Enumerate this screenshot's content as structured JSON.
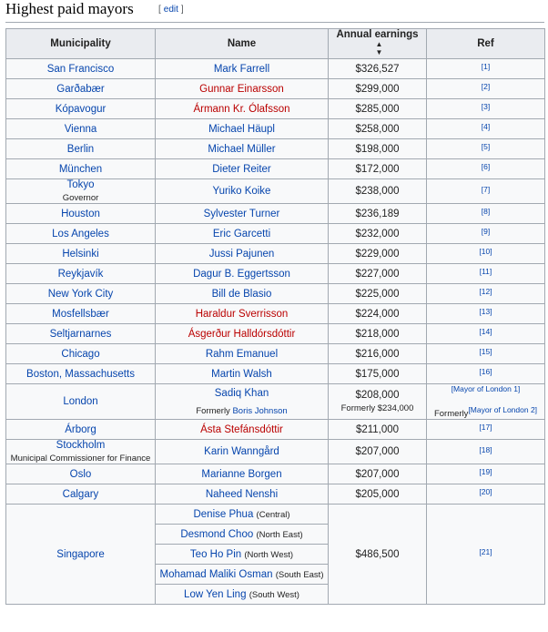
{
  "heading": {
    "title": "Highest paid mayors",
    "edit_open": "[",
    "edit_label": "edit",
    "edit_close": "]"
  },
  "table": {
    "headers": {
      "municipality": "Municipality",
      "name": "Name",
      "earnings": "Annual earnings",
      "ref": "Ref"
    },
    "sort_icon": "sort-icon",
    "rows": [
      {
        "municipality": "San Francisco",
        "name": "Mark Farrell",
        "earnings": "$326,527",
        "ref": "[1]"
      },
      {
        "municipality": "Garðabær",
        "name": "Gunnar Einarsson",
        "earnings": "$299,000",
        "ref": "[2]"
      },
      {
        "municipality": "Kópavogur",
        "name": "Ármann Kr. Ólafsson",
        "earnings": "$285,000",
        "ref": "[3]"
      },
      {
        "municipality": "Vienna",
        "name": "Michael Häupl",
        "earnings": "$258,000",
        "ref": "[4]"
      },
      {
        "municipality": "Berlin",
        "name": "Michael Müller",
        "earnings": "$198,000",
        "ref": "[5]"
      },
      {
        "municipality": "München",
        "name": "Dieter Reiter",
        "earnings": "$172,000",
        "ref": "[6]"
      },
      {
        "municipality": "Tokyo",
        "municipality_note": "Governor",
        "name": "Yuriko Koike",
        "earnings": "$238,000",
        "ref": "[7]"
      },
      {
        "municipality": "Houston",
        "name": "Sylvester Turner",
        "earnings": "$236,189",
        "ref": "[8]"
      },
      {
        "municipality": "Los Angeles",
        "name": "Eric Garcetti",
        "earnings": "$232,000",
        "ref": "[9]"
      },
      {
        "municipality": "Helsinki",
        "name": "Jussi Pajunen",
        "earnings": "$229,000",
        "ref": "[10]"
      },
      {
        "municipality": "Reykjavík",
        "name": "Dagur B. Eggertsson",
        "earnings": "$227,000",
        "ref": "[11]"
      },
      {
        "municipality": "New York City",
        "name": "Bill de Blasio",
        "earnings": "$225,000",
        "ref": "[12]"
      },
      {
        "municipality": "Mosfellsbær",
        "name": "Haraldur Sverrisson",
        "earnings": "$224,000",
        "ref": "[13]"
      },
      {
        "municipality": "Seltjarnarnes",
        "name": "Ásgerður Halldórsdóttir",
        "earnings": "$218,000",
        "ref": "[14]"
      },
      {
        "municipality": "Chicago",
        "name": "Rahm Emanuel",
        "earnings": "$216,000",
        "ref": "[15]"
      },
      {
        "municipality": "Boston, Massachusetts",
        "name": "Martin Walsh",
        "earnings": "$175,000",
        "ref": "[16]"
      },
      {
        "municipality": "London",
        "name": "Sadiq Khan",
        "name_former_prefix": "Formerly",
        "name_former": "Boris Johnson",
        "earnings": "$208,000",
        "earnings_former": "Formerly $234,000",
        "ref": "[Mayor of London 1]",
        "ref_former_prefix": "Formerly",
        "ref_former": "[Mayor of London 2]"
      },
      {
        "municipality": "Árborg",
        "name": "Ásta Stefánsdóttir",
        "earnings": "$211,000",
        "ref": "[17]"
      },
      {
        "municipality": "Stockholm",
        "municipality_note": "Municipal Commissioner for Finance",
        "name": "Karin Wanngård",
        "earnings": "$207,000",
        "ref": "[18]"
      },
      {
        "municipality": "Oslo",
        "name": "Marianne Borgen",
        "earnings": "$207,000",
        "ref": "[19]"
      },
      {
        "municipality": "Calgary",
        "name": "Naheed Nenshi",
        "earnings": "$205,000",
        "ref": "[20]"
      }
    ],
    "singapore": {
      "municipality": "Singapore",
      "earnings": "$486,500",
      "ref": "[21]",
      "members": [
        {
          "name": "Denise Phua",
          "district": "(Central)"
        },
        {
          "name": "Desmond Choo",
          "district": "(North East)"
        },
        {
          "name": "Teo Ho Pin",
          "district": "(North West)"
        },
        {
          "name": "Mohamad Maliki Osman",
          "district": "(South East)"
        },
        {
          "name": "Low Yen Ling",
          "district": "(South West)"
        }
      ]
    }
  },
  "colors": {
    "link": "#0645ad",
    "redlink": "#ba0000",
    "header_bg": "#eaecf0",
    "cell_bg": "#f8f9fa",
    "border": "#a2a9b1"
  }
}
